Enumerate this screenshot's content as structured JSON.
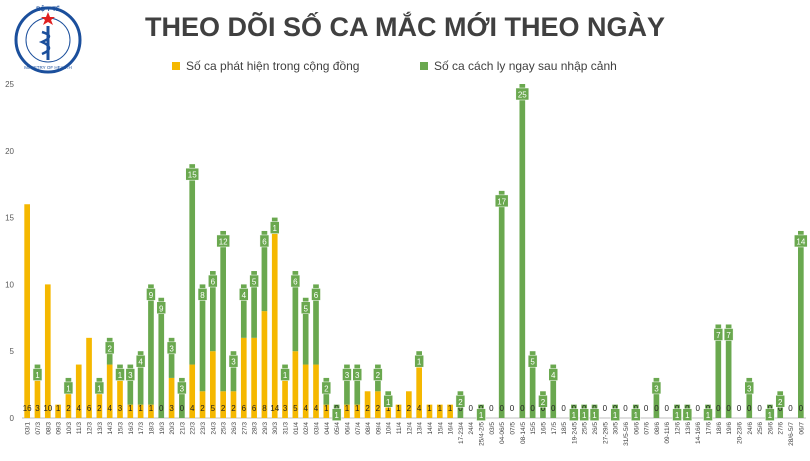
{
  "logo": {
    "top": "BỘ Y TẾ",
    "bottom": "MINISTRY OF HEALTH"
  },
  "chart_data": {
    "type": "stacked-bar",
    "title": "THEO DÕI SỐ CA MẮC MỚI THEO NGÀY",
    "categories": [
      "03/1",
      "07/3",
      "08/3",
      "09/3",
      "10/3",
      "11/3",
      "12/3",
      "13/3",
      "14/3",
      "15/3",
      "16/3",
      "17/3",
      "18/3",
      "19/3",
      "20/3",
      "21/3",
      "22/3",
      "23/3",
      "24/3",
      "25/3",
      "26/3",
      "27/3",
      "28/3",
      "29/3",
      "30/3",
      "31/3",
      "01/4",
      "02/4",
      "03/4",
      "04/4",
      "05/4",
      "06/4",
      "07/4",
      "08/4",
      "09/4",
      "10/4",
      "11/4",
      "12/4",
      "13/4",
      "14/4",
      "15/4",
      "16/4",
      "17-23/4",
      "24/4",
      "25/4-2/5",
      "03/5",
      "04-06/5",
      "07/5",
      "08-14/5",
      "15/5",
      "16/5",
      "17/5",
      "18/5",
      "19-24/5",
      "25/5",
      "26/5",
      "27-29/5",
      "30/5",
      "31/5-5/6",
      "06/6",
      "07/6",
      "08/6",
      "09-11/6",
      "12/6",
      "13/6",
      "14-16/6",
      "17/6",
      "18/6",
      "19/6",
      "20-23/6",
      "24/6",
      "25/6",
      "26/6",
      "27/6",
      "28/6-5/7",
      "06/7"
    ],
    "series": [
      {
        "name": "Số ca phát hiện trong cộng đồng",
        "color": "#f5b800",
        "values": [
          16,
          3,
          10,
          1,
          2,
          4,
          6,
          2,
          4,
          3,
          1,
          1,
          1,
          0,
          3,
          0,
          4,
          2,
          5,
          2,
          2,
          6,
          6,
          8,
          14,
          3,
          5,
          4,
          4,
          1,
          0,
          1,
          1,
          2,
          2,
          1,
          1,
          2,
          4,
          1,
          1,
          1,
          0,
          0,
          0,
          0,
          0,
          0,
          0,
          0,
          0,
          0,
          0,
          0,
          0,
          0,
          0,
          0,
          0,
          0,
          0,
          0,
          0,
          0,
          0,
          0,
          0,
          0,
          0,
          0,
          0,
          0,
          0,
          0,
          0,
          0
        ]
      },
      {
        "name": "Số ca cách ly ngay sau nhập cảnh",
        "color": "#6aa84f",
        "values": [
          0,
          1,
          0,
          0,
          1,
          0,
          0,
          1,
          2,
          1,
          3,
          4,
          9,
          9,
          3,
          3,
          15,
          8,
          6,
          12,
          3,
          4,
          5,
          6,
          1,
          1,
          6,
          5,
          6,
          2,
          1,
          3,
          3,
          0,
          2,
          1,
          0,
          0,
          1,
          0,
          0,
          0,
          2,
          0,
          1,
          0,
          17,
          0,
          25,
          5,
          2,
          4,
          0,
          1,
          1,
          1,
          0,
          1,
          0,
          1,
          0,
          3,
          0,
          1,
          1,
          0,
          1,
          7,
          7,
          0,
          3,
          0,
          1,
          2,
          0,
          14
        ]
      }
    ],
    "ylim": [
      0,
      25
    ],
    "yticks": [
      0,
      5,
      10,
      15,
      20,
      25
    ],
    "grid": false,
    "legend": "top"
  }
}
